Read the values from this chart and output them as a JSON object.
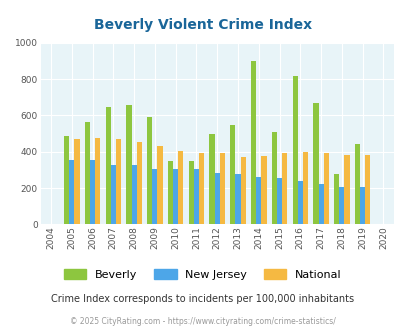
{
  "title": "Beverly Violent Crime Index",
  "years": [
    2004,
    2005,
    2006,
    2007,
    2008,
    2009,
    2010,
    2011,
    2012,
    2013,
    2014,
    2015,
    2016,
    2017,
    2018,
    2019,
    2020
  ],
  "beverly": [
    null,
    485,
    565,
    645,
    660,
    590,
    350,
    350,
    500,
    550,
    900,
    510,
    820,
    670,
    280,
    445,
    null
  ],
  "new_jersey": [
    null,
    355,
    355,
    325,
    325,
    305,
    305,
    305,
    285,
    280,
    260,
    255,
    240,
    225,
    205,
    205,
    null
  ],
  "national": [
    null,
    470,
    475,
    470,
    455,
    430,
    405,
    395,
    395,
    370,
    375,
    395,
    400,
    395,
    385,
    385,
    null
  ],
  "beverly_color": "#8dc63f",
  "nj_color": "#4da6e8",
  "national_color": "#f5b942",
  "bg_color": "#e8f4f8",
  "ylim": [
    0,
    1000
  ],
  "yticks": [
    0,
    200,
    400,
    600,
    800,
    1000
  ],
  "title_color": "#1a6699",
  "subtitle": "Crime Index corresponds to incidents per 100,000 inhabitants",
  "footer": "© 2025 CityRating.com - https://www.cityrating.com/crime-statistics/",
  "subtitle_color": "#333333",
  "footer_color": "#999999",
  "bar_width": 0.25,
  "xlim": [
    2003.5,
    2020.5
  ]
}
